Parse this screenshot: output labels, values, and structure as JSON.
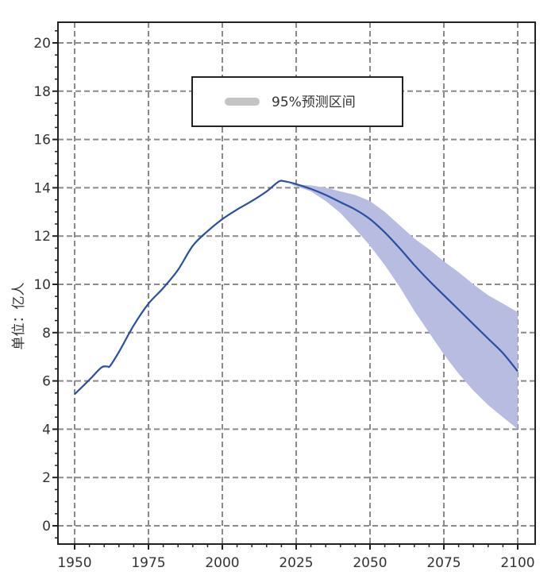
{
  "chart_data": {
    "type": "line",
    "title": "",
    "xlabel": "",
    "ylabel": "单位：亿人",
    "xlim": [
      1950,
      2100
    ],
    "ylim": [
      0,
      20
    ],
    "x_ticks": [
      1950,
      1975,
      2000,
      2025,
      2050,
      2075,
      2100
    ],
    "y_ticks": [
      0,
      2,
      4,
      6,
      8,
      10,
      12,
      14,
      16,
      18,
      20
    ],
    "grid": true,
    "legend_position": "top-center",
    "legend": [
      {
        "label": "95%预测区间",
        "color": "#c4c4c4"
      }
    ],
    "series": [
      {
        "color": "#2b4fa0",
        "points": [
          [
            1950,
            5.45
          ],
          [
            1955,
            6.05
          ],
          [
            1959,
            6.55
          ],
          [
            1961,
            6.6
          ],
          [
            1962,
            6.62
          ],
          [
            1965,
            7.2
          ],
          [
            1970,
            8.3
          ],
          [
            1975,
            9.2
          ],
          [
            1980,
            9.85
          ],
          [
            1985,
            10.6
          ],
          [
            1990,
            11.6
          ],
          [
            1995,
            12.2
          ],
          [
            2000,
            12.7
          ],
          [
            2005,
            13.1
          ],
          [
            2010,
            13.45
          ],
          [
            2015,
            13.85
          ],
          [
            2019,
            14.25
          ],
          [
            2021,
            14.27
          ],
          [
            2025,
            14.15
          ],
          [
            2030,
            13.95
          ],
          [
            2035,
            13.7
          ],
          [
            2040,
            13.4
          ],
          [
            2045,
            13.1
          ],
          [
            2050,
            12.7
          ],
          [
            2055,
            12.15
          ],
          [
            2060,
            11.5
          ],
          [
            2065,
            10.8
          ],
          [
            2070,
            10.15
          ],
          [
            2075,
            9.55
          ],
          [
            2080,
            8.95
          ],
          [
            2085,
            8.35
          ],
          [
            2090,
            7.75
          ],
          [
            2095,
            7.15
          ],
          [
            2100,
            6.4
          ]
        ]
      }
    ],
    "band": {
      "color": "#b7bce0",
      "x": [
        2023,
        2030,
        2035,
        2040,
        2045,
        2050,
        2055,
        2060,
        2065,
        2070,
        2075,
        2080,
        2085,
        2090,
        2095,
        2100
      ],
      "upper": [
        14.15,
        14.1,
        14.0,
        13.85,
        13.7,
        13.45,
        13.0,
        12.45,
        11.9,
        11.45,
        10.95,
        10.5,
        10.0,
        9.55,
        9.2,
        8.85
      ],
      "lower": [
        14.15,
        13.85,
        13.45,
        12.95,
        12.3,
        11.6,
        10.8,
        9.9,
        8.9,
        8.0,
        7.1,
        6.3,
        5.6,
        5.0,
        4.5,
        4.0
      ]
    }
  }
}
